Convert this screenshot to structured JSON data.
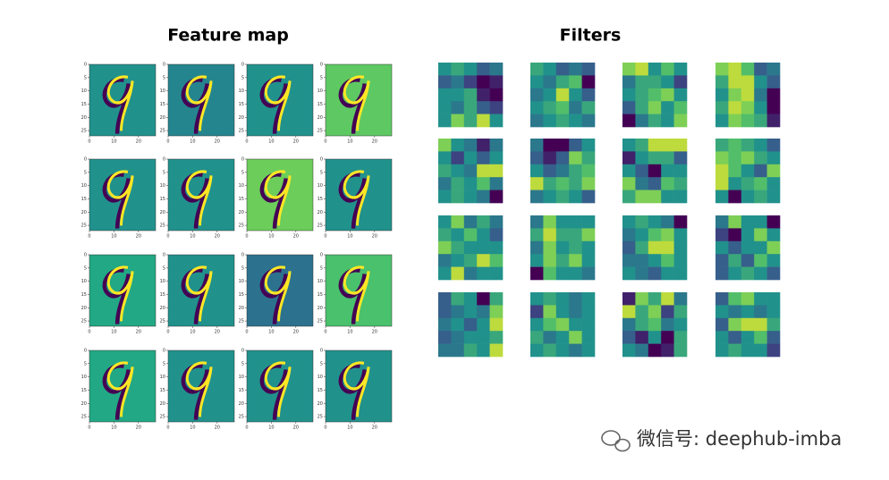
{
  "feature_map": {
    "title": "Feature map",
    "yticks": [
      0,
      5,
      10,
      15,
      20,
      25
    ],
    "xticks": [
      0,
      10,
      20
    ],
    "extent": 27,
    "backgrounds": [
      "#21918c",
      "#25858e",
      "#21918c",
      "#5ec962",
      "#21918c",
      "#21918c",
      "#6ccd5a",
      "#21918c",
      "#22a884",
      "#21918c",
      "#2c728e",
      "#4ac16d",
      "#22a884",
      "#21918c",
      "#21918c",
      "#21918c"
    ]
  },
  "filters": {
    "title": "Filters",
    "weights": [
      [
        0.5,
        0.6,
        0.5,
        0.3,
        0.4,
        0.3,
        0.4,
        0.2,
        0.0,
        0.1,
        0.5,
        0.5,
        0.6,
        0.1,
        0.0,
        0.5,
        0.4,
        0.6,
        0.3,
        0.2,
        0.5,
        0.8,
        0.6,
        0.9,
        0.5
      ],
      [
        0.6,
        0.5,
        0.3,
        0.4,
        0.3,
        0.5,
        0.4,
        0.6,
        0.7,
        0.0,
        0.4,
        0.5,
        0.9,
        0.5,
        0.3,
        0.5,
        0.6,
        0.7,
        0.4,
        0.6,
        0.4,
        0.5,
        0.6,
        0.5,
        0.4
      ],
      [
        0.8,
        0.9,
        0.5,
        0.7,
        0.5,
        0.4,
        0.6,
        0.6,
        0.5,
        0.2,
        0.5,
        0.6,
        0.7,
        0.8,
        0.5,
        0.3,
        0.6,
        0.8,
        0.5,
        0.7,
        0.0,
        0.4,
        0.6,
        0.5,
        0.8
      ],
      [
        0.8,
        0.9,
        0.7,
        0.3,
        0.4,
        0.6,
        0.9,
        0.9,
        0.5,
        0.3,
        0.5,
        0.8,
        0.9,
        0.4,
        0.0,
        0.6,
        0.9,
        0.8,
        0.5,
        0.0,
        0.5,
        0.8,
        0.7,
        0.6,
        0.1
      ],
      [
        0.8,
        0.5,
        0.4,
        0.1,
        0.4,
        0.5,
        0.2,
        0.5,
        0.3,
        0.5,
        0.6,
        0.5,
        0.4,
        0.9,
        0.9,
        0.4,
        0.6,
        0.5,
        0.7,
        0.4,
        0.5,
        0.6,
        0.5,
        0.4,
        0.0
      ],
      [
        0.4,
        0.0,
        0.0,
        0.3,
        0.5,
        0.3,
        0.1,
        0.3,
        0.8,
        0.6,
        0.5,
        0.3,
        0.4,
        0.6,
        0.7,
        0.9,
        0.6,
        0.7,
        0.6,
        0.8,
        0.4,
        0.5,
        0.6,
        0.5,
        0.3
      ],
      [
        0.5,
        0.6,
        0.9,
        0.9,
        0.9,
        0.1,
        0.5,
        0.6,
        0.6,
        0.3,
        0.5,
        0.3,
        0.0,
        0.5,
        0.5,
        0.8,
        0.4,
        0.3,
        0.7,
        0.6,
        0.6,
        0.8,
        0.8,
        0.5,
        0.5
      ],
      [
        0.6,
        0.7,
        0.6,
        0.5,
        0.3,
        0.8,
        0.7,
        0.8,
        0.6,
        0.5,
        0.9,
        0.7,
        0.5,
        0.3,
        0.8,
        0.9,
        0.5,
        0.6,
        0.7,
        0.5,
        0.5,
        0.0,
        0.5,
        0.6,
        0.5
      ],
      [
        0.5,
        0.8,
        0.4,
        0.6,
        0.4,
        0.6,
        0.5,
        0.7,
        0.5,
        0.3,
        0.8,
        0.6,
        0.5,
        0.5,
        0.5,
        0.4,
        0.5,
        0.6,
        0.9,
        0.7,
        0.5,
        0.9,
        0.4,
        0.5,
        0.5
      ],
      [
        0.4,
        0.8,
        0.5,
        0.5,
        0.5,
        0.6,
        0.9,
        0.6,
        0.6,
        0.8,
        0.4,
        0.8,
        0.5,
        0.6,
        0.5,
        0.5,
        0.8,
        0.6,
        0.8,
        0.5,
        0.0,
        0.7,
        0.5,
        0.5,
        0.4
      ],
      [
        0.5,
        0.6,
        0.5,
        0.4,
        0.0,
        0.4,
        0.5,
        0.7,
        0.8,
        0.5,
        0.3,
        0.6,
        0.9,
        0.9,
        0.5,
        0.4,
        0.4,
        0.5,
        0.7,
        0.5,
        0.5,
        0.4,
        0.3,
        0.5,
        0.5
      ],
      [
        0.4,
        0.8,
        0.5,
        0.5,
        0.0,
        0.2,
        0.0,
        0.5,
        0.8,
        0.5,
        0.5,
        0.3,
        0.5,
        0.5,
        0.8,
        0.3,
        0.6,
        0.3,
        0.7,
        0.5,
        0.3,
        0.5,
        0.6,
        0.5,
        0.3
      ],
      [
        0.3,
        0.6,
        0.5,
        0.0,
        0.6,
        0.3,
        0.4,
        0.5,
        0.4,
        0.8,
        0.4,
        0.5,
        0.3,
        0.5,
        0.9,
        0.3,
        0.4,
        0.5,
        0.5,
        0.6,
        0.4,
        0.4,
        0.6,
        0.5,
        0.9
      ],
      [
        0.5,
        0.6,
        0.5,
        0.4,
        0.5,
        0.2,
        0.8,
        0.5,
        0.4,
        0.5,
        0.5,
        0.7,
        0.8,
        0.5,
        0.5,
        0.6,
        0.4,
        0.5,
        0.8,
        0.5,
        0.5,
        0.6,
        0.5,
        0.4,
        0.5
      ],
      [
        0.1,
        0.8,
        0.6,
        0.9,
        0.4,
        0.9,
        0.6,
        0.8,
        0.2,
        0.6,
        0.4,
        0.6,
        0.7,
        0.4,
        0.5,
        0.3,
        0.1,
        0.5,
        0.0,
        0.6,
        0.5,
        0.4,
        0.0,
        0.1,
        0.6
      ],
      [
        0.3,
        0.7,
        0.8,
        0.5,
        0.5,
        0.5,
        0.4,
        0.5,
        0.4,
        0.5,
        0.3,
        0.8,
        0.9,
        0.9,
        0.6,
        0.5,
        0.3,
        0.5,
        0.7,
        0.3,
        0.5,
        0.6,
        0.5,
        0.5,
        0.2
      ]
    ]
  },
  "watermark": "微信号: deephub-imba"
}
